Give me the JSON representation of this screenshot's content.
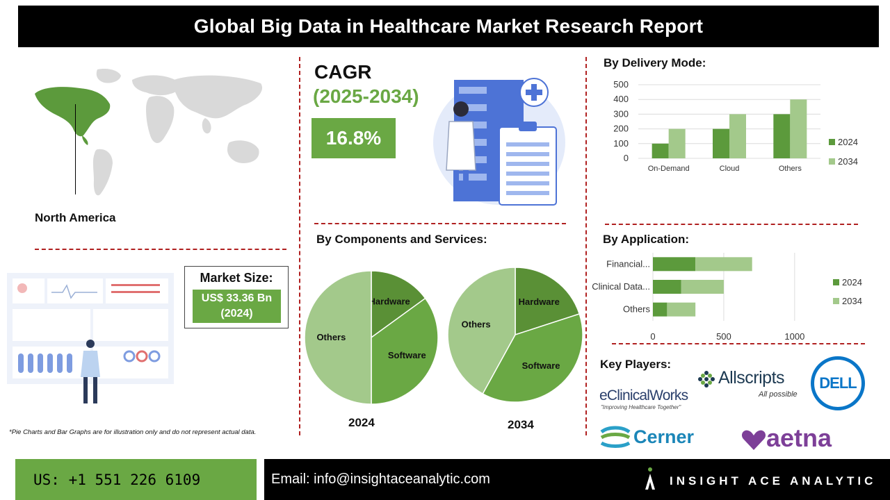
{
  "title": "Global Big Data in Healthcare Market Research Report",
  "region": "North America",
  "cagr": {
    "label": "CAGR",
    "period": "(2025-2034)",
    "value": "16.8%"
  },
  "market_size": {
    "title": "Market Size:",
    "value_line1": "US$ 33.36 Bn",
    "value_line2": "(2024)"
  },
  "sections": {
    "delivery": "By Delivery Mode:",
    "components": "By Components and Services:",
    "application": "By Application:",
    "key_players": "Key Players:"
  },
  "disclaimer": "*Pie Charts and Bar Graphs are for illustration only and do not represent actual data.",
  "footer": {
    "phone": "US: +1 551 226 6109",
    "email": "Email: info@insightaceanalytic.com",
    "brand": "INSIGHT ACE ANALYTIC"
  },
  "key_players": {
    "eclinicalworks": "eClinicalWorks",
    "eclinicalworks_tag": "\"Improving Healthcare Together\"",
    "allscripts": "Allscripts",
    "allscripts_tag": "All possible",
    "dell": "DELL",
    "cerner": "Cerner",
    "aetna": "aetna"
  },
  "colors": {
    "dark_green": "#5c9a3c",
    "light_green": "#a3c98b",
    "accent": "#6aa844",
    "divider": "#b02020"
  },
  "chart_data": [
    {
      "type": "bar",
      "title": "By Delivery Mode:",
      "categories": [
        "On-Demand",
        "Cloud",
        "Others"
      ],
      "series": [
        {
          "name": "2024",
          "values": [
            100,
            200,
            300
          ]
        },
        {
          "name": "2034",
          "values": [
            200,
            300,
            400
          ]
        }
      ],
      "ylim": [
        0,
        500
      ],
      "yticks": [
        "0",
        "100",
        "200",
        "300",
        "400",
        "500"
      ],
      "legend": "right",
      "grid": true
    },
    {
      "type": "bar",
      "orientation": "horizontal",
      "stacked": true,
      "title": "By Application:",
      "categories": [
        "Financial...",
        "Clinical Data...",
        "Others"
      ],
      "series": [
        {
          "name": "2024",
          "values": [
            300,
            200,
            100
          ]
        },
        {
          "name": "2034",
          "values": [
            400,
            300,
            200
          ]
        }
      ],
      "xlim": [
        0,
        1300
      ],
      "xticks": [
        "0",
        "500",
        "1000"
      ],
      "legend": "right",
      "grid": true
    },
    {
      "type": "pie",
      "title": "By Components and Services:",
      "year": "2024",
      "labels": [
        "Hardware",
        "Software",
        "Others"
      ],
      "values": [
        15,
        35,
        50
      ]
    },
    {
      "type": "pie",
      "year": "2034",
      "labels": [
        "Hardware",
        "Software",
        "Others"
      ],
      "values": [
        20,
        38,
        42
      ]
    }
  ]
}
